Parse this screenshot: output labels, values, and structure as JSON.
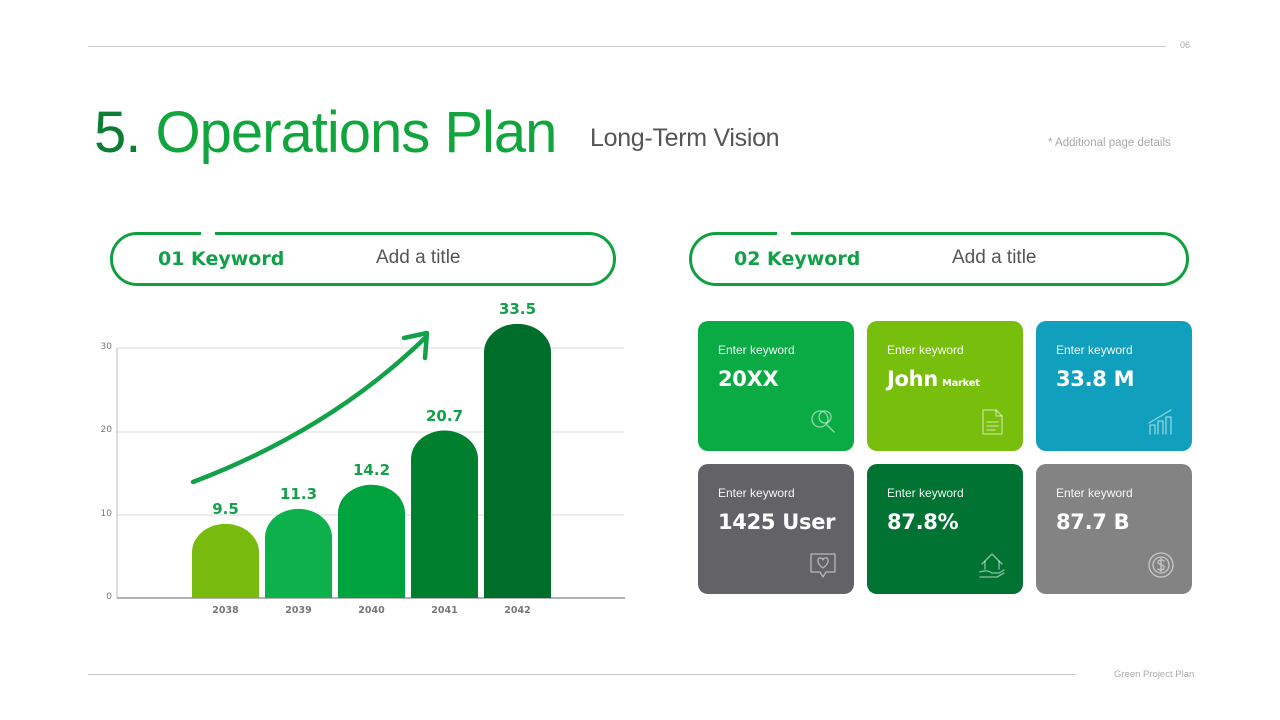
{
  "header": {
    "page_number": "06",
    "title_number": "5.",
    "title_text": "Operations Plan",
    "subtitle": "Long-Term Vision",
    "additional_details": "* Additional page details"
  },
  "sections": [
    {
      "keyword": "01 Keyword",
      "title": "Add a title"
    },
    {
      "keyword": "02 Keyword",
      "title": "Add a title"
    }
  ],
  "chart_data": {
    "type": "bar",
    "title": "",
    "xlabel": "",
    "ylabel": "",
    "categories": [
      "2038",
      "2039",
      "2040",
      "2041",
      "2042"
    ],
    "values": [
      9.5,
      11.3,
      14.2,
      20.7,
      33.5
    ],
    "value_labels": [
      "9.5",
      "11.3",
      "14.2",
      "20.7",
      "33.5"
    ],
    "ylim": [
      0,
      30
    ],
    "yticks": [
      "0",
      "10",
      "20",
      "30"
    ],
    "grid": true,
    "legend": "none",
    "bar_colors": [
      "#78bb0e",
      "#0db14b",
      "#00a33d",
      "#00802f",
      "#006e2b"
    ],
    "annotations": [
      "upward trend arrow"
    ]
  },
  "cards": [
    {
      "label": "Enter keyword",
      "value": "20XX",
      "sub": "",
      "icon": "search-icon",
      "color": "#0aaa44"
    },
    {
      "label": "Enter keyword",
      "value": "John",
      "sub": "Market",
      "icon": "document-icon",
      "color": "#78be0c"
    },
    {
      "label": "Enter keyword",
      "value": "33.8 M",
      "sub": "",
      "icon": "growth-chart-icon",
      "color": "#10a0bd"
    },
    {
      "label": "Enter keyword",
      "value": "1425 User",
      "sub": "",
      "icon": "heart-chat-icon",
      "color": "#636266"
    },
    {
      "label": "Enter keyword",
      "value": "87.8%",
      "sub": "",
      "icon": "home-hand-icon",
      "color": "#007231"
    },
    {
      "label": "Enter keyword",
      "value": "87.7 B",
      "sub": "",
      "icon": "coin-icon",
      "color": "#838384"
    }
  ],
  "footer": {
    "text": "Green Project Plan"
  }
}
